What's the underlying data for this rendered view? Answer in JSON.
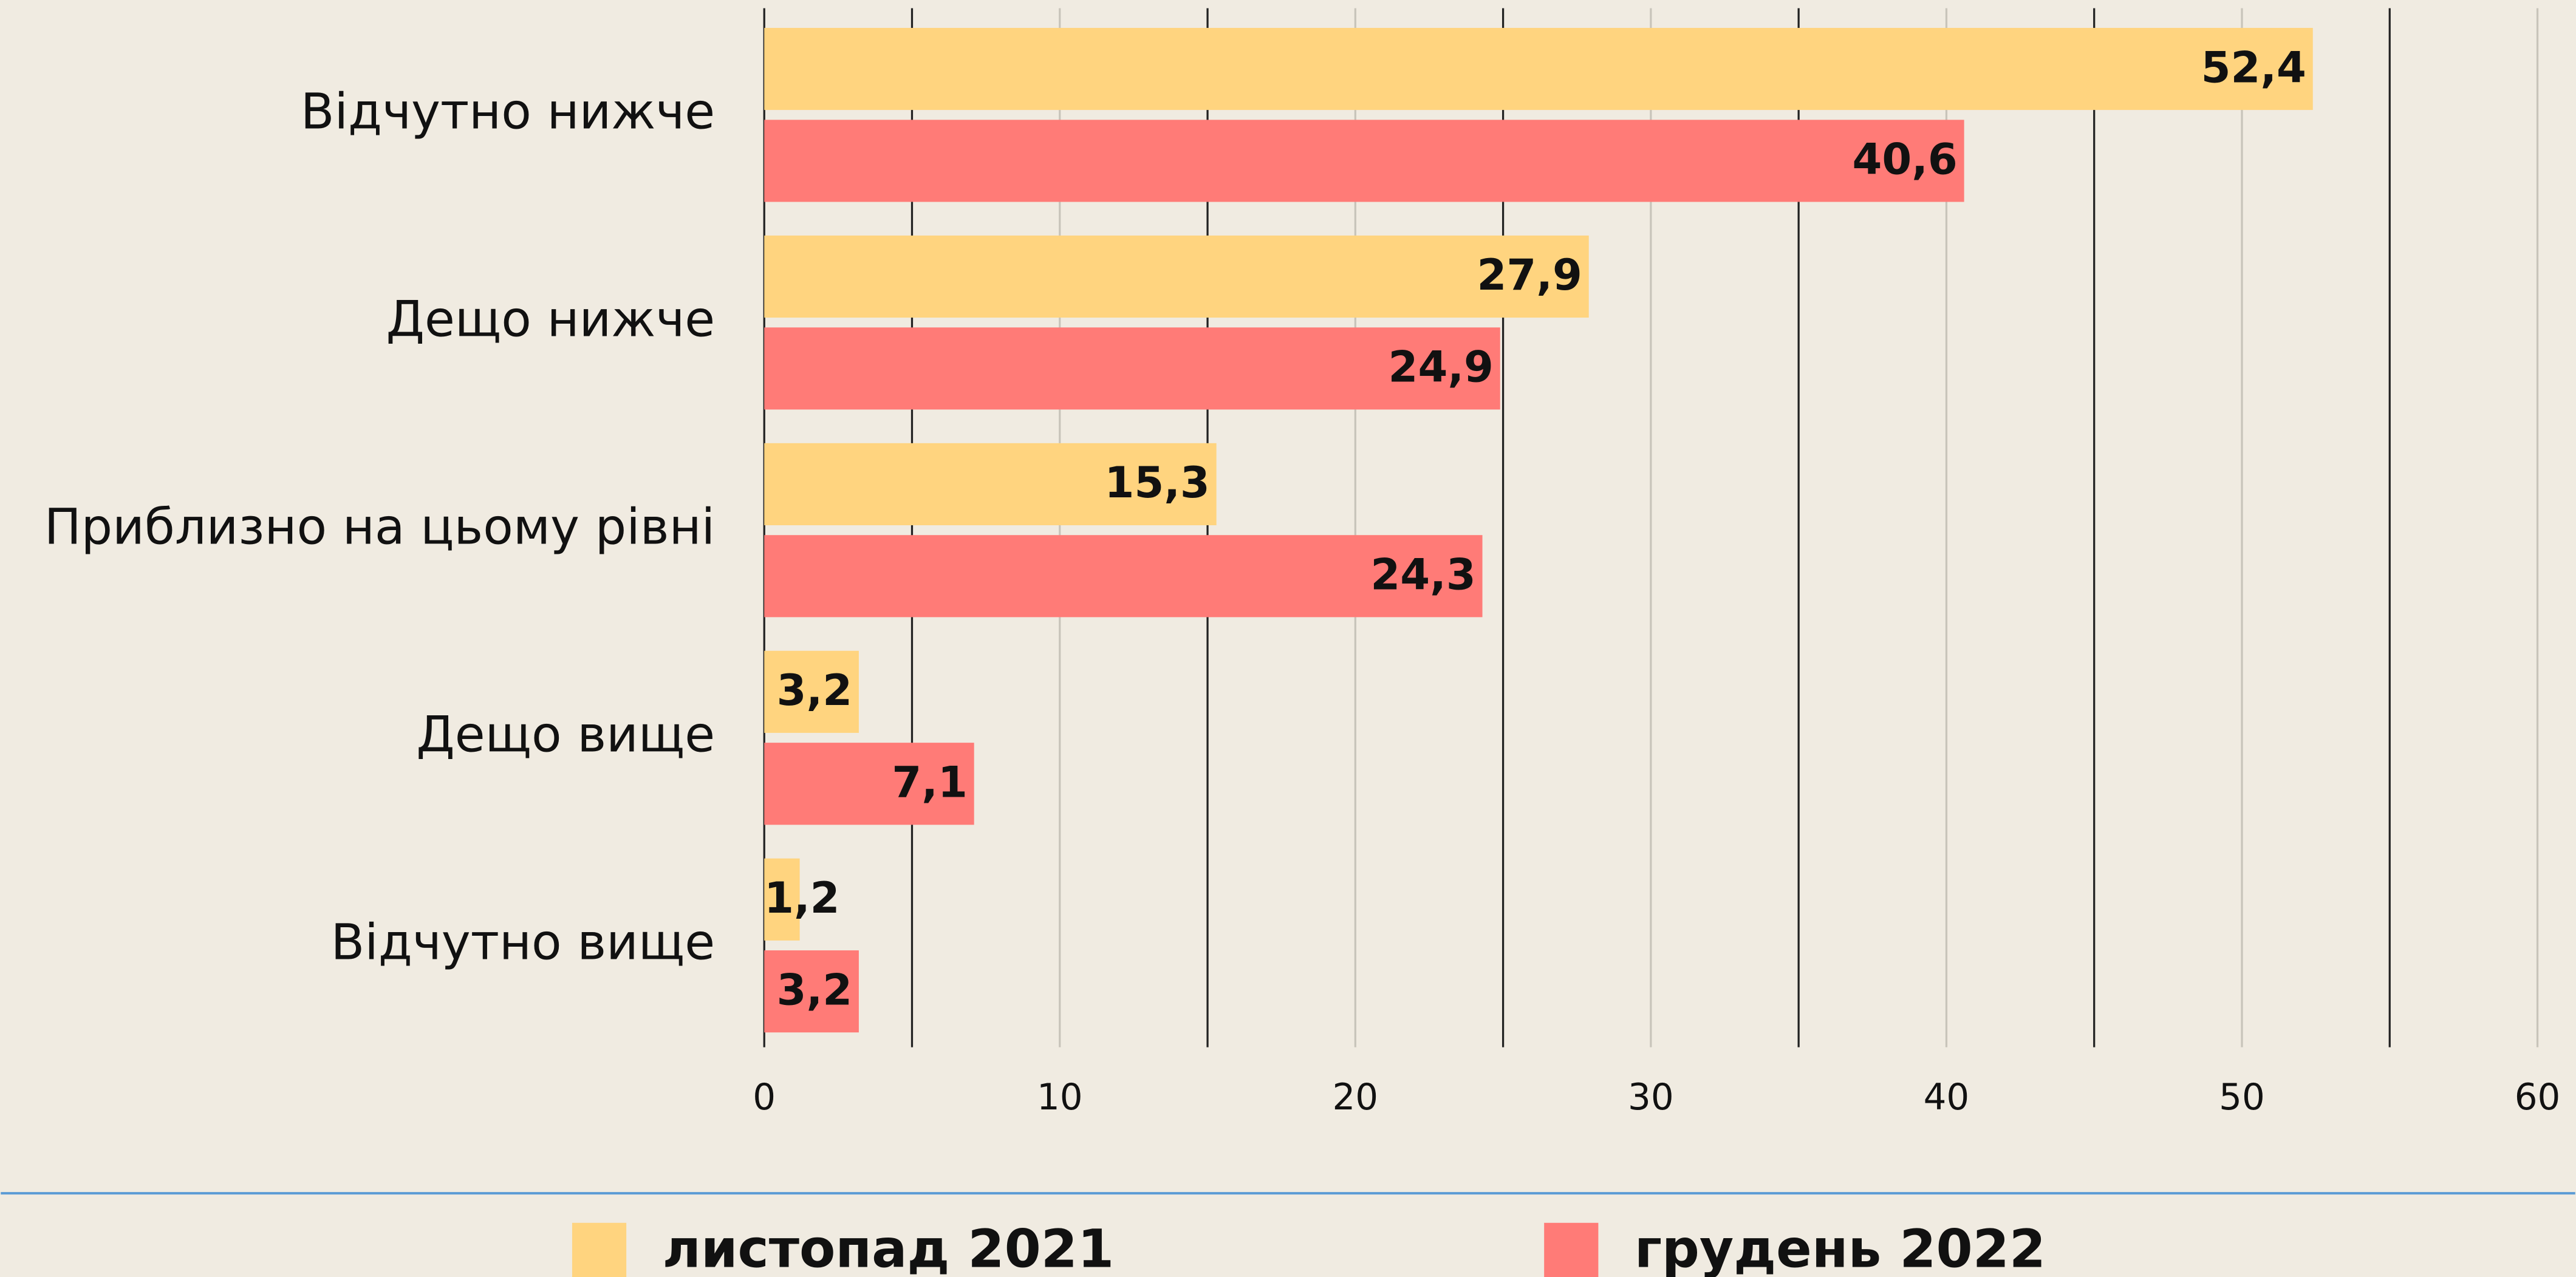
{
  "chart_data": {
    "type": "hbar",
    "categories": [
      "Відчутно нижче",
      "Дещо нижче",
      "Приблизно на цьому рівні",
      "Дещо вище",
      "Відчутно вище"
    ],
    "series": [
      {
        "name": "листопад 2021",
        "color": "#ffd47f",
        "values": [
          52.4,
          27.9,
          15.3,
          3.2,
          1.2
        ],
        "value_labels": [
          "52,4",
          "27,9",
          "15,3",
          "3,2",
          "1,2"
        ]
      },
      {
        "name": "грудень 2022",
        "color": "#ff7b77",
        "values": [
          40.6,
          24.9,
          24.3,
          7.1,
          3.2
        ],
        "value_labels": [
          "40,6",
          "24,9",
          "24,3",
          "7,1",
          "3,2"
        ]
      }
    ],
    "xlim": [
      0,
      60
    ],
    "xticks": [
      0,
      10,
      20,
      30,
      40,
      50,
      60
    ],
    "xminorticks": [
      5,
      15,
      25,
      35,
      45,
      55
    ],
    "grid": true,
    "legend": "bottom"
  }
}
